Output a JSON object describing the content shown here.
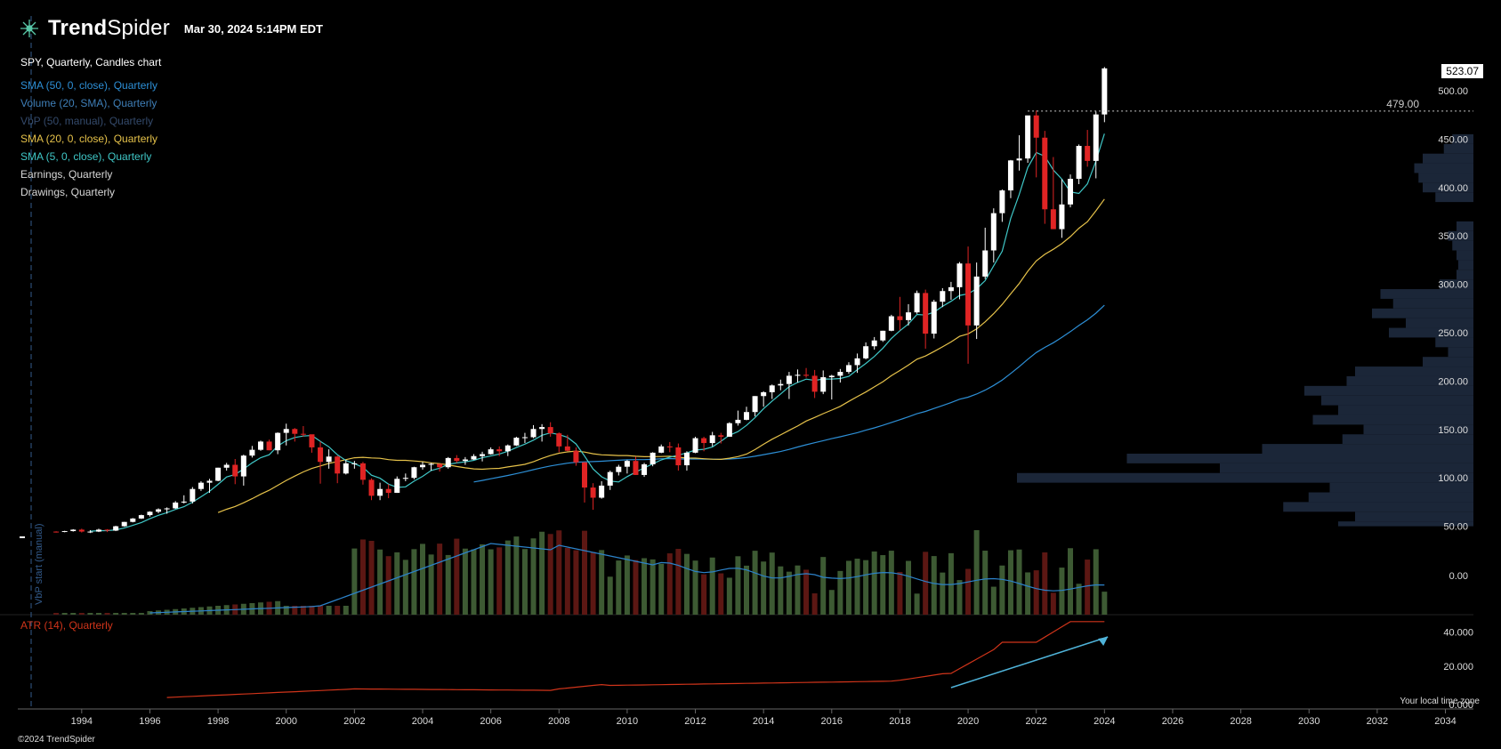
{
  "header": {
    "brand_bold": "Trend",
    "brand_thin": "Spider",
    "timestamp": "Mar 30, 2024 5:14PM EDT"
  },
  "legend": {
    "title": "SPY, Quarterly, Candles chart",
    "items": [
      {
        "label": "SMA (50, 0, close), Quarterly",
        "color": "#2d8fd6"
      },
      {
        "label": "Volume (20, SMA), Quarterly",
        "color": "#3f7fb8"
      },
      {
        "label": "VbP (50, manual), Quarterly",
        "color": "#344a6b"
      },
      {
        "label": "SMA (20, 0, close), Quarterly",
        "color": "#e6c24a"
      },
      {
        "label": "SMA (5, 0, close), Quarterly",
        "color": "#3fc7c7"
      },
      {
        "label": "Earnings, Quarterly",
        "color": "#d8d8d8"
      },
      {
        "label": "Drawings, Quarterly",
        "color": "#d8d8d8"
      }
    ]
  },
  "atr_label": "ATR (14), Quarterly",
  "atr_color": "#d0341a",
  "price_tag": "523.07",
  "level_label": "479.00",
  "vbp_start_label": "VbP start (manual)",
  "timezone_label": "Your local time zone",
  "copyright": "©2024 TrendSpider",
  "colors": {
    "up": "#ffffff",
    "down": "#e02424",
    "vol_up": "#3d5a33",
    "vol_down": "#5c1713",
    "vbp": "#1b2638",
    "arrow": "#4fb3d9",
    "vbp_line": "#335b8c"
  },
  "chart_data": {
    "type": "candlestick",
    "symbol": "SPY",
    "timeframe": "Quarterly",
    "x_range": [
      1993.3,
      2034.3
    ],
    "x_ticks": [
      "1994",
      "1996",
      "1998",
      "2000",
      "2002",
      "2004",
      "2006",
      "2008",
      "2010",
      "2012",
      "2014",
      "2016",
      "2018",
      "2020",
      "2022",
      "2024",
      "2026",
      "2028",
      "2030",
      "2032",
      "2034"
    ],
    "price_axis": {
      "range": [
        0,
        530
      ],
      "ticks": [
        "50.00",
        "100.00",
        "150.00",
        "200.00",
        "250.00",
        "300.00",
        "350.00",
        "400.00",
        "450.00",
        "500.00"
      ]
    },
    "volume_axis_label": "0.00",
    "atr_axis": {
      "range": [
        0,
        48
      ],
      "ticks": [
        "40.000",
        "20.000",
        "0.000"
      ]
    },
    "price_range": [
      0,
      530
    ],
    "candles": [
      [
        1993.25,
        44.5,
        44.8,
        43.5,
        44.2
      ],
      [
        1993.5,
        44.2,
        45.3,
        43.8,
        45.0
      ],
      [
        1993.75,
        45.0,
        47.0,
        44.5,
        46.5
      ],
      [
        1994.0,
        46.5,
        47.5,
        43.5,
        44.5
      ],
      [
        1994.25,
        44.5,
        46.0,
        43.0,
        44.5
      ],
      [
        1994.5,
        44.5,
        47.5,
        44.0,
        46.5
      ],
      [
        1994.75,
        46.5,
        47.0,
        44.0,
        45.5
      ],
      [
        1995.0,
        45.5,
        50.5,
        45.0,
        50.0
      ],
      [
        1995.25,
        50.0,
        54.5,
        49.5,
        54.5
      ],
      [
        1995.5,
        54.5,
        58.5,
        54.0,
        58.0
      ],
      [
        1995.75,
        58.0,
        62.0,
        57.5,
        61.5
      ],
      [
        1996.0,
        61.5,
        65.5,
        60.0,
        65.0
      ],
      [
        1996.25,
        65.0,
        68.5,
        63.5,
        67.5
      ],
      [
        1996.5,
        67.5,
        69.5,
        63.0,
        68.5
      ],
      [
        1996.75,
        68.5,
        76.0,
        68.0,
        74.5
      ],
      [
        1997.0,
        74.5,
        82.0,
        73.5,
        75.5
      ],
      [
        1997.25,
        75.5,
        90.5,
        73.5,
        88.5
      ],
      [
        1997.5,
        88.5,
        96.5,
        86.5,
        95.0
      ],
      [
        1997.75,
        95.0,
        99.0,
        84.5,
        97.0
      ],
      [
        1998.0,
        97.0,
        110.5,
        96.5,
        110.5
      ],
      [
        1998.25,
        110.5,
        115.5,
        107.5,
        113.5
      ],
      [
        1998.5,
        113.5,
        119.5,
        93.5,
        101.5
      ],
      [
        1998.75,
        101.5,
        124.0,
        92.0,
        123.0
      ],
      [
        1999.0,
        123.0,
        133.0,
        121.0,
        129.0
      ],
      [
        1999.25,
        129.0,
        138.5,
        128.0,
        137.5
      ],
      [
        1999.5,
        137.5,
        139.5,
        128.5,
        128.5
      ],
      [
        1999.75,
        128.5,
        147.0,
        124.5,
        146.5
      ],
      [
        2000.0,
        146.5,
        156.0,
        133.5,
        150.5
      ],
      [
        2000.25,
        150.5,
        151.5,
        137.5,
        145.5
      ],
      [
        2000.5,
        145.5,
        153.5,
        142.5,
        145.0
      ],
      [
        2000.75,
        145.0,
        144.0,
        126.0,
        131.5
      ],
      [
        2001.0,
        131.5,
        137.5,
        94.0,
        116.5
      ],
      [
        2001.25,
        116.5,
        129.5,
        109.5,
        122.0
      ],
      [
        2001.5,
        122.0,
        123.0,
        94.5,
        104.5
      ],
      [
        2001.75,
        104.5,
        118.5,
        103.5,
        115.0
      ],
      [
        2002.0,
        115.0,
        117.5,
        109.5,
        115.0
      ],
      [
        2002.25,
        115.0,
        116.5,
        93.0,
        98.0
      ],
      [
        2002.5,
        98.0,
        99.5,
        77.0,
        81.5
      ],
      [
        2002.75,
        81.5,
        95.0,
        77.0,
        88.5
      ],
      [
        2003.0,
        88.5,
        93.5,
        79.0,
        84.5
      ],
      [
        2003.25,
        84.5,
        101.5,
        84.5,
        99.0
      ],
      [
        2003.5,
        99.0,
        104.5,
        96.5,
        100.0
      ],
      [
        2003.75,
        100.0,
        111.5,
        98.5,
        111.0
      ],
      [
        2004.0,
        111.0,
        116.5,
        108.5,
        113.5
      ],
      [
        2004.25,
        113.5,
        115.5,
        107.5,
        114.5
      ],
      [
        2004.5,
        114.5,
        113.5,
        106.5,
        111.0
      ],
      [
        2004.75,
        111.0,
        121.5,
        109.5,
        120.5
      ],
      [
        2005.0,
        120.5,
        123.5,
        115.5,
        117.5
      ],
      [
        2005.25,
        117.5,
        121.5,
        113.5,
        119.0
      ],
      [
        2005.5,
        119.0,
        124.5,
        118.5,
        122.5
      ],
      [
        2005.75,
        122.5,
        127.0,
        117.0,
        124.5
      ],
      [
        2006.0,
        124.5,
        131.5,
        124.0,
        129.5
      ],
      [
        2006.25,
        129.5,
        132.5,
        122.5,
        127.5
      ],
      [
        2006.5,
        127.5,
        134.5,
        122.5,
        133.5
      ],
      [
        2006.75,
        133.5,
        142.5,
        133.0,
        141.5
      ],
      [
        2007.0,
        141.5,
        146.5,
        136.0,
        142.0
      ],
      [
        2007.25,
        142.0,
        154.5,
        141.0,
        150.5
      ],
      [
        2007.5,
        150.5,
        155.5,
        137.5,
        152.5
      ],
      [
        2007.75,
        152.5,
        157.5,
        142.5,
        146.0
      ],
      [
        2008.0,
        146.0,
        147.0,
        126.5,
        132.5
      ],
      [
        2008.25,
        132.5,
        144.5,
        127.5,
        128.0
      ],
      [
        2008.5,
        128.0,
        131.5,
        112.5,
        116.0
      ],
      [
        2008.75,
        116.0,
        116.5,
        74.5,
        90.0
      ],
      [
        2009.0,
        90.0,
        94.5,
        67.0,
        79.5
      ],
      [
        2009.25,
        79.5,
        96.5,
        78.5,
        92.0
      ],
      [
        2009.5,
        92.0,
        107.5,
        87.5,
        106.0
      ],
      [
        2009.75,
        106.0,
        113.5,
        102.5,
        111.5
      ],
      [
        2010.0,
        111.5,
        118.5,
        104.5,
        117.5
      ],
      [
        2010.25,
        117.5,
        122.0,
        103.0,
        103.0
      ],
      [
        2010.5,
        103.0,
        115.5,
        101.0,
        114.0
      ],
      [
        2010.75,
        114.0,
        126.5,
        112.0,
        126.0
      ],
      [
        2011.0,
        126.0,
        134.5,
        125.5,
        132.5
      ],
      [
        2011.25,
        132.5,
        137.0,
        126.5,
        131.5
      ],
      [
        2011.5,
        131.5,
        135.5,
        107.5,
        113.0
      ],
      [
        2011.75,
        113.0,
        127.5,
        107.5,
        126.0
      ],
      [
        2012.0,
        126.0,
        142.5,
        125.5,
        141.0
      ],
      [
        2012.25,
        141.0,
        142.5,
        127.5,
        136.0
      ],
      [
        2012.5,
        136.0,
        147.5,
        132.5,
        144.0
      ],
      [
        2012.75,
        144.0,
        146.5,
        135.5,
        142.5
      ],
      [
        2013.0,
        142.5,
        157.5,
        142.5,
        156.5
      ],
      [
        2013.25,
        156.5,
        169.5,
        154.0,
        160.0
      ],
      [
        2013.5,
        160.0,
        173.5,
        159.5,
        168.0
      ],
      [
        2013.75,
        168.0,
        184.5,
        163.5,
        184.5
      ],
      [
        2014.0,
        184.5,
        189.5,
        173.5,
        188.5
      ],
      [
        2014.25,
        188.5,
        196.5,
        181.5,
        195.5
      ],
      [
        2014.5,
        195.5,
        201.5,
        190.5,
        197.0
      ],
      [
        2014.75,
        197.0,
        209.5,
        181.5,
        205.5
      ],
      [
        2015.0,
        205.5,
        212.0,
        198.5,
        206.5
      ],
      [
        2015.25,
        206.5,
        213.5,
        203.5,
        205.5
      ],
      [
        2015.5,
        205.5,
        211.5,
        182.5,
        189.0
      ],
      [
        2015.75,
        189.0,
        211.0,
        186.5,
        204.0
      ],
      [
        2016.0,
        204.0,
        206.5,
        181.0,
        205.5
      ],
      [
        2016.25,
        205.5,
        212.5,
        198.5,
        209.5
      ],
      [
        2016.5,
        209.5,
        219.5,
        207.5,
        216.5
      ],
      [
        2016.75,
        216.5,
        228.5,
        208.5,
        223.5
      ],
      [
        2017.0,
        223.5,
        240.0,
        222.5,
        236.0
      ],
      [
        2017.25,
        236.0,
        245.5,
        232.5,
        242.0
      ],
      [
        2017.5,
        242.0,
        252.0,
        240.5,
        252.0
      ],
      [
        2017.75,
        252.0,
        268.5,
        251.5,
        267.0
      ],
      [
        2018.0,
        267.0,
        287.0,
        252.5,
        263.0
      ],
      [
        2018.25,
        263.0,
        279.5,
        257.5,
        271.0
      ],
      [
        2018.5,
        271.0,
        293.5,
        269.5,
        291.0
      ],
      [
        2018.75,
        291.0,
        294.5,
        233.5,
        249.0
      ],
      [
        2019.0,
        249.0,
        284.0,
        244.0,
        282.0
      ],
      [
        2019.25,
        282.0,
        296.0,
        276.5,
        293.0
      ],
      [
        2019.5,
        293.0,
        302.5,
        284.0,
        297.0
      ],
      [
        2019.75,
        297.0,
        323.0,
        284.5,
        321.5
      ],
      [
        2020.0,
        321.5,
        339.0,
        218.0,
        257.5
      ],
      [
        2020.25,
        257.5,
        322.5,
        243.5,
        308.0
      ],
      [
        2020.5,
        308.0,
        358.5,
        305.5,
        335.0
      ],
      [
        2020.75,
        335.0,
        378.5,
        322.5,
        373.5
      ],
      [
        2021.0,
        373.5,
        398.0,
        364.5,
        397.0
      ],
      [
        2021.25,
        397.0,
        428.5,
        389.0,
        428.0
      ],
      [
        2021.5,
        428.0,
        454.0,
        417.5,
        430.0
      ],
      [
        2021.75,
        430.0,
        473.5,
        425.5,
        474.5
      ],
      [
        2022.0,
        474.5,
        479.5,
        410.5,
        451.5
      ],
      [
        2022.25,
        451.5,
        458.5,
        362.5,
        377.5
      ],
      [
        2022.5,
        377.5,
        431.5,
        357.0,
        357.0
      ],
      [
        2022.75,
        357.0,
        408.5,
        348.0,
        382.5
      ],
      [
        2023.0,
        382.5,
        413.5,
        379.5,
        409.0
      ],
      [
        2023.25,
        409.0,
        444.5,
        403.5,
        443.0
      ],
      [
        2023.5,
        443.0,
        459.5,
        421.5,
        427.5
      ],
      [
        2023.75,
        427.5,
        478.5,
        409.5,
        475.5
      ],
      [
        2024.0,
        475.5,
        524.5,
        467.5,
        523.1
      ]
    ],
    "sma50_endpoints": [
      [
        2005.75,
        108
      ],
      [
        2024.0,
        272
      ]
    ],
    "volume_bars_note": "quarterly volume bars, green up / red down, with 20-period SMA line",
    "atr_series_note": "ATR(14) rising from ~2 (1996) to ~46 (2024)"
  }
}
